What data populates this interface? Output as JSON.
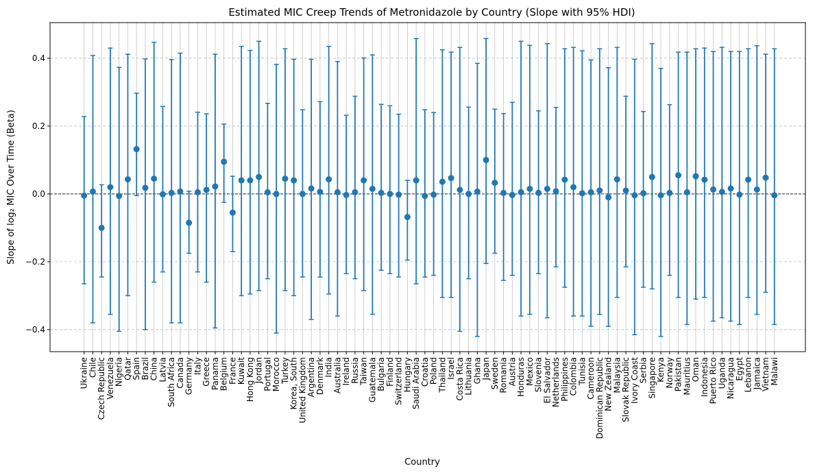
{
  "chart_data": {
    "type": "scatter",
    "title": "Estimated MIC Creep Trends of Metronidazole by Country (Slope with 95% HDI)",
    "xlabel": "Country",
    "ylabel": "Slope of log₂ MIC Over Time (Beta)",
    "ylim": [
      -0.465,
      0.505
    ],
    "yticks": [
      -0.4,
      -0.2,
      0.0,
      0.2,
      0.4
    ],
    "ytick_labels": [
      "−0.4",
      "−0.2",
      "0.0",
      "0.2",
      "0.4"
    ],
    "reference_line": 0.0,
    "grid": "y dashed, x solid",
    "colors": {
      "series": "#1f77b4",
      "grid": "#b0b0b0",
      "zero_line": "#000000"
    },
    "categories": [
      "Ukraine",
      "Chile",
      "Czech Republic",
      "Venezuela",
      "Nigeria",
      "Qatar",
      "Spain",
      "Brazil",
      "China",
      "Latvia",
      "South Africa",
      "Canada",
      "Germany",
      "Italy",
      "Greece",
      "Panama",
      "Belgium",
      "France",
      "Kuwait",
      "Hong Kong",
      "Jordan",
      "Portugal",
      "Morocco",
      "Turkey",
      "Korea, South",
      "United Kingdom",
      "Argentina",
      "Denmark",
      "India",
      "Australia",
      "Ireland",
      "Russia",
      "Taiwan",
      "Guatemala",
      "Bulgaria",
      "Finland",
      "Switzerland",
      "Hungary",
      "Saudi Arabia",
      "Croatia",
      "Poland",
      "Thailand",
      "Israel",
      "Costa Rica",
      "Lithuania",
      "Ghana",
      "Japan",
      "Sweden",
      "Romania",
      "Austria",
      "Honduras",
      "Mexico",
      "Slovenia",
      "El Salvador",
      "Netherlands",
      "Philippines",
      "Colombia",
      "Tunisia",
      "Cameroon",
      "Dominican Republic",
      "New Zealand",
      "Malaysia",
      "Slovak Republic",
      "Ivory Coast",
      "Serbia",
      "Singapore",
      "Kenya",
      "Norway",
      "Pakistan",
      "Mauritius",
      "Oman",
      "Indonesia",
      "Puerto Rico",
      "Uganda",
      "Nicaragua",
      "Egypt",
      "Lebanon",
      "Jamaica",
      "Vietnam",
      "Malawi"
    ],
    "slope": [
      -0.005,
      0.007,
      -0.1,
      0.02,
      -0.006,
      0.043,
      0.132,
      0.018,
      0.045,
      -0.001,
      0.003,
      0.007,
      -0.085,
      0.005,
      0.012,
      0.022,
      0.095,
      -0.055,
      0.04,
      0.04,
      0.05,
      0.005,
      0.0,
      0.045,
      0.04,
      0.0,
      0.016,
      0.006,
      0.043,
      0.005,
      -0.003,
      0.005,
      0.04,
      0.015,
      0.003,
      0.0,
      -0.002,
      -0.068,
      0.04,
      -0.006,
      -0.002,
      0.036,
      0.047,
      0.012,
      0.0,
      0.007,
      0.1,
      0.033,
      0.003,
      -0.003,
      0.005,
      0.015,
      0.003,
      0.015,
      0.008,
      0.042,
      0.02,
      0.002,
      0.005,
      0.01,
      -0.01,
      0.043,
      0.01,
      -0.004,
      0.002,
      0.05,
      -0.004,
      0.003,
      0.055,
      0.005,
      0.052,
      0.042,
      0.013,
      0.006,
      0.016,
      -0.002,
      0.042,
      0.013,
      0.048,
      -0.004
    ],
    "hdi_low": [
      -0.265,
      -0.38,
      -0.245,
      -0.355,
      -0.405,
      -0.3,
      -0.005,
      -0.4,
      -0.26,
      -0.23,
      -0.38,
      -0.38,
      -0.175,
      -0.23,
      -0.26,
      -0.395,
      -0.025,
      -0.17,
      -0.3,
      -0.295,
      -0.285,
      -0.25,
      -0.41,
      -0.285,
      -0.3,
      -0.245,
      -0.37,
      -0.245,
      -0.295,
      -0.36,
      -0.235,
      -0.25,
      -0.285,
      -0.355,
      -0.225,
      -0.235,
      -0.245,
      -0.195,
      -0.265,
      -0.245,
      -0.24,
      -0.305,
      -0.305,
      -0.405,
      -0.25,
      -0.42,
      -0.205,
      -0.175,
      -0.255,
      -0.24,
      -0.36,
      -0.355,
      -0.235,
      -0.365,
      -0.215,
      -0.275,
      -0.36,
      -0.36,
      -0.39,
      -0.355,
      -0.39,
      -0.305,
      -0.215,
      -0.415,
      -0.275,
      -0.28,
      -0.42,
      -0.24,
      -0.305,
      -0.385,
      -0.31,
      -0.305,
      -0.375,
      -0.365,
      -0.375,
      -0.385,
      -0.305,
      -0.355,
      -0.29,
      -0.385
    ],
    "hdi_high": [
      0.228,
      0.408,
      0.027,
      0.43,
      0.373,
      0.412,
      0.297,
      0.398,
      0.447,
      0.258,
      0.396,
      0.415,
      0.008,
      0.241,
      0.236,
      0.412,
      0.206,
      0.052,
      0.435,
      0.423,
      0.45,
      0.267,
      0.382,
      0.428,
      0.397,
      0.248,
      0.397,
      0.272,
      0.435,
      0.39,
      0.232,
      0.288,
      0.401,
      0.41,
      0.264,
      0.26,
      0.235,
      0.04,
      0.458,
      0.248,
      0.24,
      0.425,
      0.418,
      0.432,
      0.256,
      0.385,
      0.458,
      0.25,
      0.237,
      0.27,
      0.45,
      0.438,
      0.245,
      0.443,
      0.255,
      0.428,
      0.432,
      0.422,
      0.395,
      0.428,
      0.372,
      0.432,
      0.288,
      0.397,
      0.243,
      0.443,
      0.37,
      0.263,
      0.418,
      0.418,
      0.428,
      0.43,
      0.42,
      0.432,
      0.42,
      0.42,
      0.428,
      0.437,
      0.412,
      0.428
    ]
  }
}
